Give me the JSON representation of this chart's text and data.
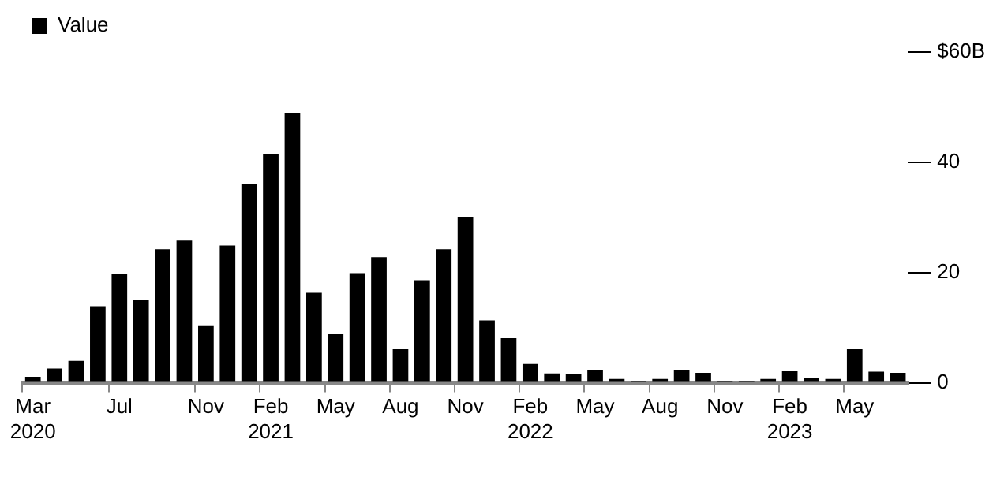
{
  "chart_data": {
    "type": "bar",
    "categories": [
      "Mar\n2020",
      null,
      null,
      null,
      "Jul",
      null,
      null,
      null,
      "Nov",
      null,
      null,
      "Feb\n2021",
      null,
      null,
      "May",
      null,
      null,
      "Aug",
      null,
      null,
      "Nov",
      null,
      null,
      "Feb\n2022",
      null,
      null,
      "May",
      null,
      null,
      "Aug",
      null,
      null,
      "Nov",
      null,
      null,
      "Feb\n2023",
      null,
      null,
      "May",
      null,
      null
    ],
    "series": [
      {
        "name": "Value",
        "color": "#000000",
        "values": [
          1.1,
          2.6,
          4,
          13.9,
          19.7,
          15.1,
          24.2,
          25.8,
          10.4,
          24.9,
          36,
          41.4,
          49,
          16.3,
          8.8,
          19.9,
          22.8,
          6.1,
          18.6,
          24.2,
          30.1,
          11.3,
          8.1,
          3.4,
          1.7,
          1.6,
          2.3,
          0.7,
          0.3,
          0.7,
          2.3,
          1.8,
          0.3,
          0.3,
          0.7,
          2.1,
          0.9,
          0.7,
          6.1,
          2,
          1.8
        ]
      }
    ],
    "ylim": [
      0,
      60
    ],
    "yticks": [
      0,
      20,
      40,
      {
        "value": 60,
        "label": "$60B"
      }
    ],
    "legend": "top left"
  }
}
